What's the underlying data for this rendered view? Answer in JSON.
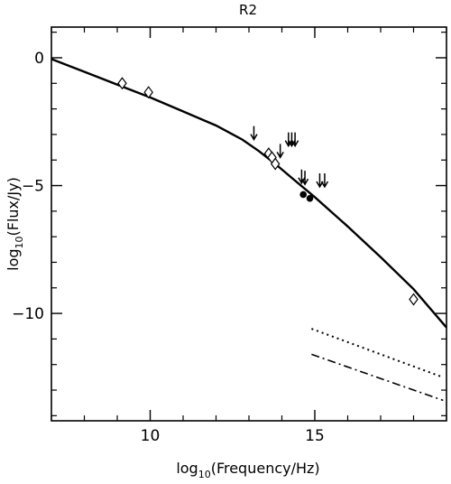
{
  "chart_data": {
    "type": "scatter",
    "title": "R2",
    "xlabel": "log10(Frequency/Hz)",
    "ylabel": "log10(Flux/Jy)",
    "xlabel_parts": {
      "pre": "log",
      "sub": "10",
      "post": "(Frequency/Hz)"
    },
    "ylabel_parts": {
      "pre": "log",
      "sub": "10",
      "post": "(Flux/Jy)"
    },
    "xlim": [
      7,
      19
    ],
    "ylim": [
      -14.2,
      1.2
    ],
    "xticks": [
      10,
      15
    ],
    "yticks": [
      0,
      -5,
      -10
    ],
    "xtick_labels": [
      "10",
      "15"
    ],
    "ytick_labels": [
      "0",
      "−5",
      "−10"
    ],
    "grid": false,
    "legend": "none",
    "series": [
      {
        "style": "solid-line",
        "x": [
          7.0,
          8.0,
          9.0,
          10.0,
          11.0,
          12.0,
          12.8,
          13.3,
          13.8,
          14.3,
          15.0,
          16.0,
          17.0,
          18.0,
          19.0
        ],
        "y": [
          -0.05,
          -0.55,
          -1.05,
          -1.55,
          -2.1,
          -2.65,
          -3.2,
          -3.65,
          -4.15,
          -4.7,
          -5.45,
          -6.6,
          -7.8,
          -9.05,
          -10.55
        ]
      },
      {
        "style": "dotted-line",
        "x": [
          14.9,
          18.9
        ],
        "y": [
          -10.6,
          -12.5
        ]
      },
      {
        "style": "dash-dot-line",
        "x": [
          14.9,
          18.9
        ],
        "y": [
          -11.6,
          -13.4
        ]
      },
      {
        "style": "diamond-markers",
        "x": [
          9.15,
          9.95,
          13.6,
          13.7,
          13.8,
          18.0
        ],
        "y": [
          -1.0,
          -1.35,
          -3.75,
          -3.9,
          -4.15,
          -9.45
        ]
      },
      {
        "style": "filled-circle-markers",
        "x": [
          14.65,
          14.85
        ],
        "y": [
          -5.35,
          -5.5
        ]
      },
      {
        "style": "upper-limit-arrows",
        "x": [
          13.15,
          13.95,
          14.2,
          14.3,
          14.4,
          14.6,
          14.7,
          15.15,
          15.3
        ],
        "y": [
          -3.2,
          -3.9,
          -3.45,
          -3.45,
          -3.45,
          -4.9,
          -4.95,
          -5.05,
          -5.05
        ]
      }
    ]
  }
}
